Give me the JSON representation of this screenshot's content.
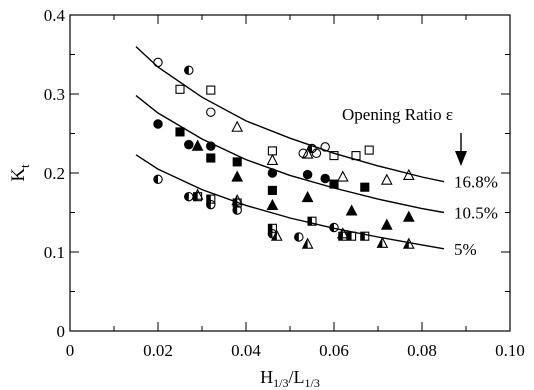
{
  "chart_data": {
    "type": "scatter",
    "xlabel": "H",
    "xlabel_sub1": "1/3",
    "xlabel_mid": "/L",
    "xlabel_sub2": "1/3",
    "ylabel": "K",
    "ylabel_sub": "t",
    "xlim": [
      0,
      0.1
    ],
    "ylim": [
      0,
      0.4
    ],
    "xticks": [
      "0",
      "0.02",
      "0.04",
      "0.06",
      "0.08",
      "0.10"
    ],
    "yticks": [
      "0",
      "0.1",
      "0.2",
      "0.3",
      "0.4"
    ],
    "annotation": "Opening Ratio ε",
    "colors": {
      "ink": "#000000",
      "background": "#ffffff"
    },
    "curves": [
      {
        "label": "16.8%",
        "points": [
          [
            0.015,
            0.36
          ],
          [
            0.02,
            0.334
          ],
          [
            0.03,
            0.296
          ],
          [
            0.04,
            0.266
          ],
          [
            0.05,
            0.244
          ],
          [
            0.06,
            0.225
          ],
          [
            0.07,
            0.209
          ],
          [
            0.08,
            0.195
          ],
          [
            0.085,
            0.189
          ]
        ]
      },
      {
        "label": "10.5%",
        "points": [
          [
            0.015,
            0.298
          ],
          [
            0.02,
            0.276
          ],
          [
            0.03,
            0.243
          ],
          [
            0.04,
            0.217
          ],
          [
            0.05,
            0.197
          ],
          [
            0.06,
            0.181
          ],
          [
            0.07,
            0.167
          ],
          [
            0.08,
            0.155
          ],
          [
            0.085,
            0.15
          ]
        ]
      },
      {
        "label": "5%",
        "points": [
          [
            0.015,
            0.223
          ],
          [
            0.02,
            0.205
          ],
          [
            0.03,
            0.179
          ],
          [
            0.04,
            0.159
          ],
          [
            0.05,
            0.143
          ],
          [
            0.06,
            0.13
          ],
          [
            0.07,
            0.119
          ],
          [
            0.08,
            0.109
          ],
          [
            0.085,
            0.104
          ]
        ]
      }
    ],
    "series": [
      {
        "marker": "circle-open",
        "points": [
          [
            0.02,
            0.34
          ],
          [
            0.032,
            0.277
          ],
          [
            0.053,
            0.225
          ],
          [
            0.056,
            0.225
          ],
          [
            0.058,
            0.233
          ]
        ]
      },
      {
        "marker": "square-open",
        "points": [
          [
            0.025,
            0.306
          ],
          [
            0.032,
            0.305
          ],
          [
            0.046,
            0.228
          ],
          [
            0.06,
            0.222
          ],
          [
            0.065,
            0.222
          ],
          [
            0.068,
            0.229
          ]
        ]
      },
      {
        "marker": "triangle-open",
        "points": [
          [
            0.038,
            0.258
          ],
          [
            0.046,
            0.216
          ],
          [
            0.054,
            0.224
          ],
          [
            0.062,
            0.195
          ],
          [
            0.072,
            0.191
          ],
          [
            0.077,
            0.197
          ]
        ]
      },
      {
        "marker": "circle-half",
        "points": [
          [
            0.027,
            0.33
          ],
          [
            0.055,
            0.231
          ]
        ]
      },
      {
        "marker": "circle-filled",
        "points": [
          [
            0.02,
            0.262
          ],
          [
            0.027,
            0.236
          ],
          [
            0.032,
            0.234
          ],
          [
            0.046,
            0.2
          ],
          [
            0.054,
            0.198
          ],
          [
            0.058,
            0.193
          ]
        ]
      },
      {
        "marker": "square-filled",
        "points": [
          [
            0.025,
            0.252
          ],
          [
            0.032,
            0.219
          ],
          [
            0.038,
            0.214
          ],
          [
            0.046,
            0.178
          ],
          [
            0.06,
            0.186
          ],
          [
            0.067,
            0.182
          ]
        ]
      },
      {
        "marker": "triangle-filled",
        "points": [
          [
            0.029,
            0.234
          ],
          [
            0.038,
            0.195
          ],
          [
            0.046,
            0.159
          ],
          [
            0.054,
            0.169
          ],
          [
            0.064,
            0.152
          ],
          [
            0.072,
            0.134
          ],
          [
            0.077,
            0.144
          ]
        ]
      },
      {
        "marker": "circle-half",
        "points": [
          [
            0.02,
            0.192
          ],
          [
            0.027,
            0.17
          ],
          [
            0.032,
            0.16
          ],
          [
            0.038,
            0.153
          ],
          [
            0.046,
            0.123
          ],
          [
            0.052,
            0.119
          ],
          [
            0.06,
            0.131
          ]
        ]
      },
      {
        "marker": "square-half",
        "points": [
          [
            0.029,
            0.17
          ],
          [
            0.032,
            0.167
          ],
          [
            0.038,
            0.162
          ],
          [
            0.046,
            0.13
          ],
          [
            0.055,
            0.139
          ],
          [
            0.062,
            0.12
          ],
          [
            0.064,
            0.12
          ],
          [
            0.067,
            0.12
          ]
        ]
      },
      {
        "marker": "triangle-half",
        "points": [
          [
            0.029,
            0.172
          ],
          [
            0.038,
            0.165
          ],
          [
            0.047,
            0.12
          ],
          [
            0.054,
            0.11
          ],
          [
            0.062,
            0.123
          ],
          [
            0.071,
            0.111
          ],
          [
            0.077,
            0.11
          ]
        ]
      }
    ]
  }
}
